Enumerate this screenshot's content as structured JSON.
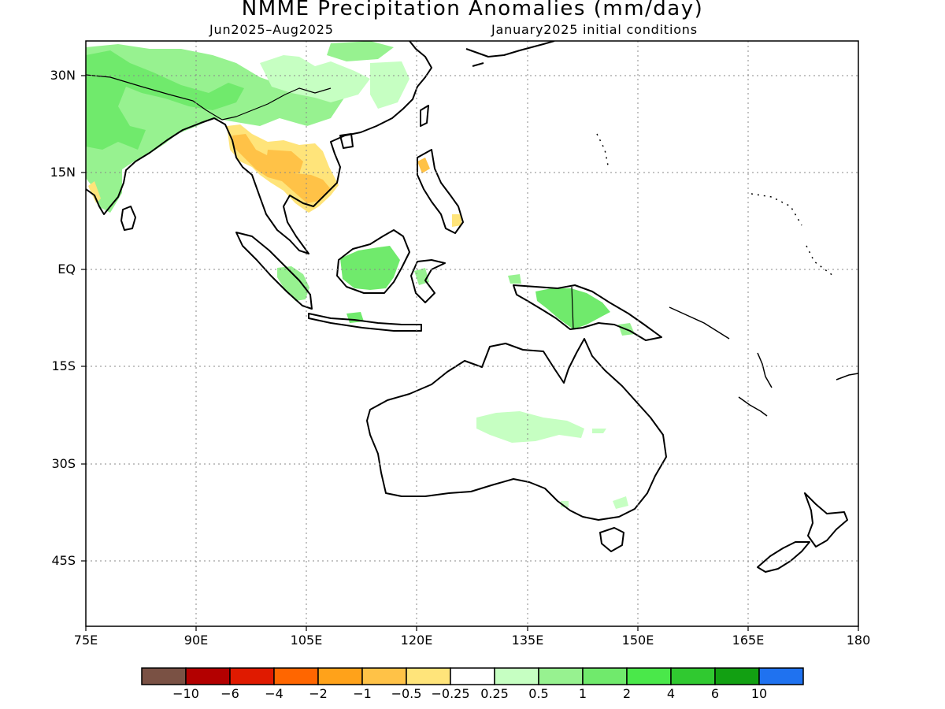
{
  "map": {
    "title": "NMME Precipitation Anomalies (mm/day)",
    "period": "Jun2025–Aug2025",
    "init": "January2025 initial conditions",
    "lat_labels": [
      "30N",
      "15N",
      "EQ",
      "15S",
      "30S",
      "45S"
    ],
    "lon_labels": [
      "75E",
      "90E",
      "105E",
      "120E",
      "135E",
      "150E",
      "165E",
      "180"
    ],
    "lon_range": [
      75,
      180
    ],
    "lat_range": [
      -55,
      35
    ],
    "grid": "dotted",
    "land_mask": "white outlines on white",
    "colorbar": {
      "labels": [
        "−10",
        "−6",
        "−4",
        "−2",
        "−1",
        "−0.5",
        "−0.25",
        "0.25",
        "0.5",
        "1",
        "2",
        "4",
        "6",
        "10"
      ],
      "colors": [
        "#7a5144",
        "#b30000",
        "#e01a00",
        "#ff6600",
        "#ffa21a",
        "#ffc247",
        "#ffe47a",
        "#ffffff",
        "#c6ffc2",
        "#97f290",
        "#70ea6c",
        "#4ae84a",
        "#30c930",
        "#12a012",
        "#1f72f0"
      ]
    },
    "anomaly_regions": [
      {
        "name": "south-asia-wet",
        "color": "#97f290"
      },
      {
        "name": "himalaya-wet",
        "color": "#70ea6c"
      },
      {
        "name": "mainland-se-asia-dry",
        "color": "#ffc247"
      },
      {
        "name": "borneo-wet",
        "color": "#70ea6c"
      },
      {
        "name": "new-guinea-wet",
        "color": "#70ea6c"
      },
      {
        "name": "central-australia-wet",
        "color": "#c6ffc2"
      }
    ]
  }
}
